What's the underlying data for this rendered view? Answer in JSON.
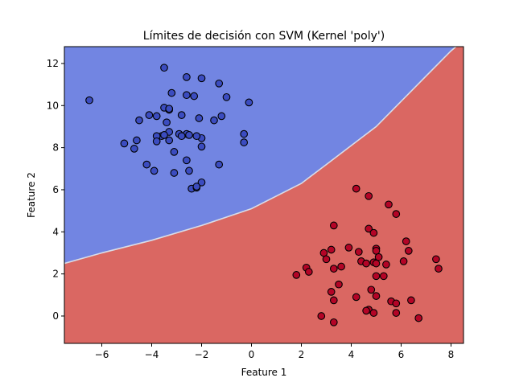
{
  "chart_data": {
    "type": "scatter",
    "title": "Límites de decisión con SVM (Kernel 'poly')",
    "xlabel": "Feature 1",
    "ylabel": "Feature 2",
    "xlim": [
      -7.5,
      8.5
    ],
    "ylim": [
      -1.3,
      12.8
    ],
    "x_ticks": [
      -6,
      -4,
      -2,
      0,
      2,
      4,
      6,
      8
    ],
    "y_ticks": [
      0,
      2,
      4,
      6,
      8,
      10,
      12
    ],
    "x_tick_labels": [
      "−6",
      "−4",
      "−2",
      "0",
      "2",
      "4",
      "6",
      "8"
    ],
    "y_tick_labels": [
      "0",
      "2",
      "4",
      "6",
      "8",
      "10",
      "12"
    ],
    "grid": false,
    "legend": "none",
    "region_colors": {
      "class_0": "#7285e2",
      "class_1": "#da6762",
      "boundary": "#d9dde8"
    },
    "marker_colors": {
      "class_0": "#3b4cc0",
      "class_1": "#b40426",
      "edge": "#000000"
    },
    "decision_boundary": [
      [
        -7.5,
        2.5
      ],
      [
        -6,
        3.0
      ],
      [
        -4,
        3.6
      ],
      [
        -2,
        4.3
      ],
      [
        0,
        5.1
      ],
      [
        2,
        6.3
      ],
      [
        3,
        7.2
      ],
      [
        4,
        8.1
      ],
      [
        5,
        9.0
      ],
      [
        6,
        10.2
      ],
      [
        7,
        11.4
      ],
      [
        8,
        12.6
      ],
      [
        8.2,
        12.8
      ]
    ],
    "series": [
      {
        "class": 0,
        "points": [
          [
            -6.5,
            10.25
          ],
          [
            -3.5,
            11.8
          ],
          [
            -2.6,
            11.35
          ],
          [
            -2.0,
            11.3
          ],
          [
            -1.3,
            11.05
          ],
          [
            -3.2,
            10.6
          ],
          [
            -2.6,
            10.5
          ],
          [
            -2.3,
            10.45
          ],
          [
            -1.0,
            10.4
          ],
          [
            -0.1,
            10.15
          ],
          [
            -3.5,
            9.9
          ],
          [
            -3.3,
            9.8
          ],
          [
            -3.3,
            9.85
          ],
          [
            -2.8,
            9.55
          ],
          [
            -4.1,
            9.55
          ],
          [
            -3.8,
            9.5
          ],
          [
            -4.5,
            9.3
          ],
          [
            -1.5,
            9.3
          ],
          [
            -1.2,
            9.5
          ],
          [
            -2.1,
            9.4
          ],
          [
            -3.4,
            9.2
          ],
          [
            -3.3,
            8.75
          ],
          [
            -2.9,
            8.65
          ],
          [
            -3.6,
            8.55
          ],
          [
            -3.8,
            8.55
          ],
          [
            -3.5,
            8.6
          ],
          [
            -2.6,
            8.65
          ],
          [
            -2.5,
            8.6
          ],
          [
            -2.8,
            8.55
          ],
          [
            -2.0,
            8.45
          ],
          [
            -0.3,
            8.65
          ],
          [
            -4.6,
            8.35
          ],
          [
            -3.8,
            8.3
          ],
          [
            -3.3,
            8.35
          ],
          [
            -2.2,
            8.55
          ],
          [
            -5.1,
            8.2
          ],
          [
            -4.7,
            7.95
          ],
          [
            -2.0,
            8.05
          ],
          [
            -0.3,
            8.25
          ],
          [
            -3.1,
            7.8
          ],
          [
            -2.6,
            7.4
          ],
          [
            -4.2,
            7.2
          ],
          [
            -1.3,
            7.2
          ],
          [
            -3.9,
            6.9
          ],
          [
            -3.1,
            6.8
          ],
          [
            -2.5,
            6.9
          ],
          [
            -2.0,
            6.35
          ],
          [
            -2.4,
            6.05
          ],
          [
            -2.2,
            6.1
          ],
          [
            -2.2,
            6.15
          ]
        ]
      },
      {
        "class": 1,
        "points": [
          [
            4.2,
            6.05
          ],
          [
            4.7,
            5.7
          ],
          [
            5.5,
            5.3
          ],
          [
            5.8,
            4.85
          ],
          [
            3.3,
            4.3
          ],
          [
            4.7,
            4.15
          ],
          [
            4.9,
            3.95
          ],
          [
            6.2,
            3.55
          ],
          [
            3.9,
            3.25
          ],
          [
            4.3,
            3.05
          ],
          [
            5.0,
            3.2
          ],
          [
            5.0,
            3.1
          ],
          [
            6.3,
            3.1
          ],
          [
            3.2,
            3.15
          ],
          [
            2.9,
            3.0
          ],
          [
            5.1,
            2.8
          ],
          [
            7.4,
            2.7
          ],
          [
            3.0,
            2.7
          ],
          [
            4.4,
            2.6
          ],
          [
            4.6,
            2.5
          ],
          [
            4.9,
            2.55
          ],
          [
            5.0,
            2.5
          ],
          [
            5.4,
            2.45
          ],
          [
            6.1,
            2.6
          ],
          [
            3.6,
            2.35
          ],
          [
            2.2,
            2.3
          ],
          [
            3.3,
            2.25
          ],
          [
            7.5,
            2.25
          ],
          [
            2.3,
            2.1
          ],
          [
            1.8,
            1.95
          ],
          [
            5.0,
            1.9
          ],
          [
            5.3,
            1.9
          ],
          [
            3.5,
            1.5
          ],
          [
            4.8,
            1.25
          ],
          [
            3.2,
            1.15
          ],
          [
            4.2,
            0.9
          ],
          [
            5.0,
            0.95
          ],
          [
            3.3,
            0.75
          ],
          [
            5.6,
            0.7
          ],
          [
            5.8,
            0.6
          ],
          [
            6.4,
            0.75
          ],
          [
            4.7,
            0.3
          ],
          [
            4.6,
            0.25
          ],
          [
            4.9,
            0.15
          ],
          [
            5.8,
            0.15
          ],
          [
            2.8,
            0.0
          ],
          [
            6.7,
            -0.1
          ],
          [
            3.3,
            -0.3
          ]
        ]
      }
    ]
  }
}
